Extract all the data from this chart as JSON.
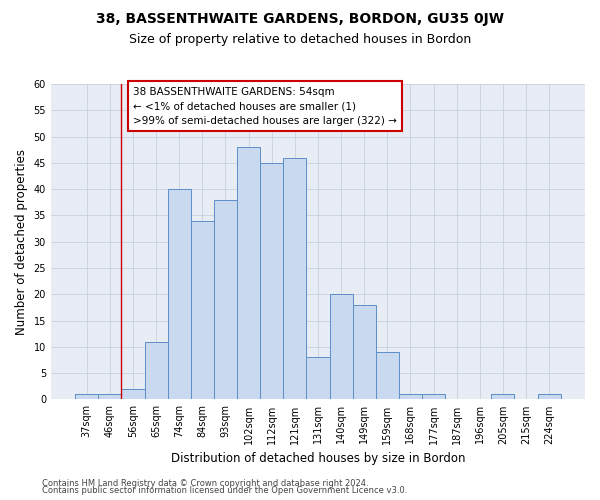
{
  "title": "38, BASSENTHWAITE GARDENS, BORDON, GU35 0JW",
  "subtitle": "Size of property relative to detached houses in Bordon",
  "xlabel": "Distribution of detached houses by size in Bordon",
  "ylabel": "Number of detached properties",
  "categories": [
    "37sqm",
    "46sqm",
    "56sqm",
    "65sqm",
    "74sqm",
    "84sqm",
    "93sqm",
    "102sqm",
    "112sqm",
    "121sqm",
    "131sqm",
    "140sqm",
    "149sqm",
    "159sqm",
    "168sqm",
    "177sqm",
    "187sqm",
    "196sqm",
    "205sqm",
    "215sqm",
    "224sqm"
  ],
  "values": [
    1,
    1,
    2,
    11,
    40,
    34,
    38,
    48,
    45,
    46,
    8,
    20,
    18,
    9,
    1,
    1,
    0,
    0,
    1,
    0,
    1
  ],
  "bar_color": "#c9d9ef",
  "bar_edge_color": "#5b8fc7",
  "red_line_x": 1.5,
  "annotation_title": "38 BASSENTHWAITE GARDENS: 54sqm",
  "annotation_line1": "← <1% of detached houses are smaller (1)",
  "annotation_line2": ">99% of semi-detached houses are larger (322) →",
  "annotation_box_color": "#ffffff",
  "annotation_box_edge": "#cc0000",
  "ylim": [
    0,
    60
  ],
  "yticks": [
    0,
    5,
    10,
    15,
    20,
    25,
    30,
    35,
    40,
    45,
    50,
    55,
    60
  ],
  "footer1": "Contains HM Land Registry data © Crown copyright and database right 2024.",
  "footer2": "Contains public sector information licensed under the Open Government Licence v3.0.",
  "bg_color": "#ffffff",
  "plot_bg_color": "#e8edf5",
  "grid_color": "#c8d0df",
  "title_fontsize": 10,
  "subtitle_fontsize": 9,
  "label_fontsize": 8.5,
  "tick_fontsize": 7,
  "footer_fontsize": 6,
  "annot_fontsize": 7.5
}
